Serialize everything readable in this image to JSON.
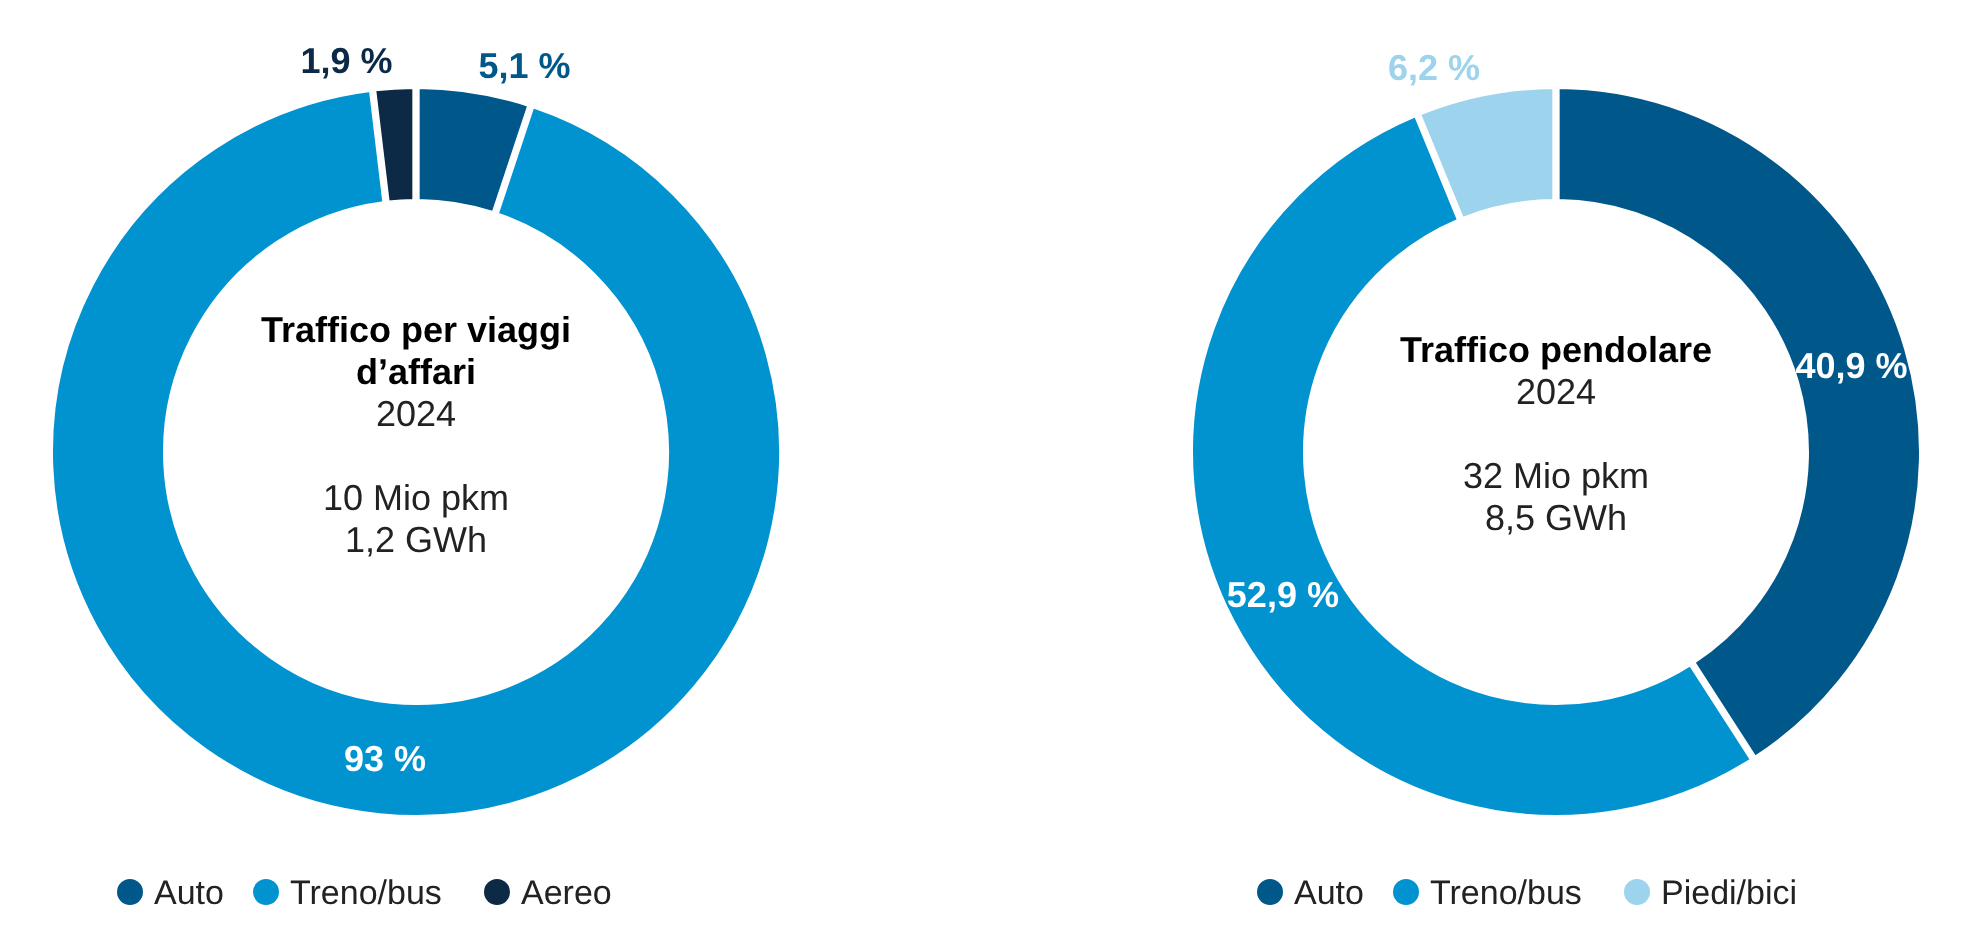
{
  "chart_data": [
    {
      "type": "donut",
      "title": "Traffico per viaggi d’affari",
      "subtitle": "2024",
      "annotations": [
        "10 Mio pkm",
        "1,2 GWh"
      ],
      "categories": [
        "Auto",
        "Treno/bus",
        "Aereo"
      ],
      "values": [
        5.1,
        93,
        1.9
      ],
      "value_labels": [
        "5,1 %",
        "93 %",
        "1,9 %"
      ],
      "colors": [
        "#00588a",
        "#0093d0",
        "#0c2946"
      ],
      "legend": "bottom"
    },
    {
      "type": "donut",
      "title": "Traffico pendolare",
      "subtitle": "2024",
      "annotations": [
        "32 Mio pkm",
        "8,5 GWh"
      ],
      "categories": [
        "Auto",
        "Treno/bus",
        "Piedi/bici"
      ],
      "values": [
        40.9,
        52.9,
        6.2
      ],
      "value_labels": [
        "40,9 %",
        "52,9 %",
        "6,2 %"
      ],
      "colors": [
        "#00588a",
        "#0093d0",
        "#9dd3ec"
      ],
      "legend": "bottom"
    }
  ]
}
